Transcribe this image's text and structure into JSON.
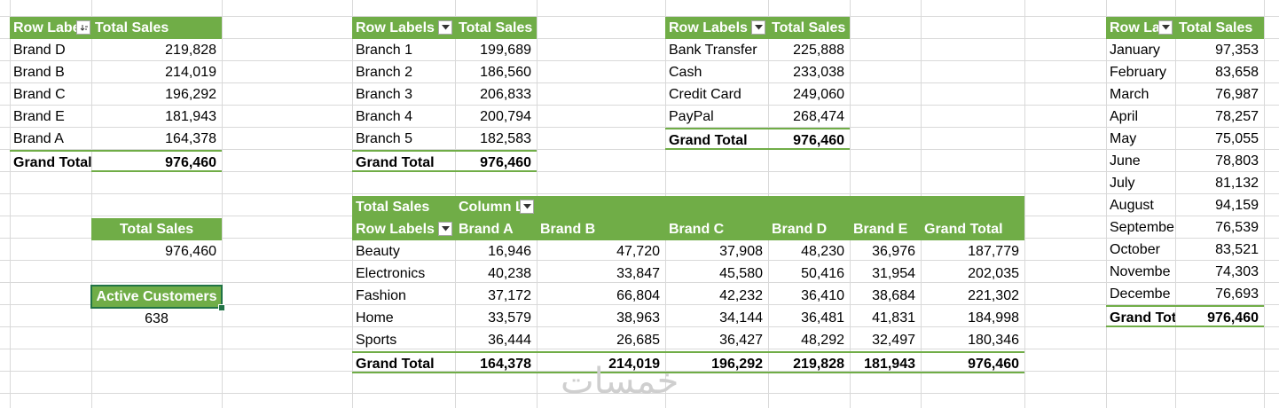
{
  "colors": {
    "accent": "#70ad47",
    "gridline": "#d9d9d9",
    "selection": "#217346"
  },
  "brand_pivot": {
    "header_row_label": "Row Labe",
    "header_value": "Total Sales",
    "rows": [
      {
        "label": "Brand D",
        "value": "219,828"
      },
      {
        "label": "Brand B",
        "value": "214,019"
      },
      {
        "label": "Brand C",
        "value": "196,292"
      },
      {
        "label": "Brand E",
        "value": "181,943"
      },
      {
        "label": "Brand A",
        "value": "164,378"
      }
    ],
    "total_label": "Grand Total",
    "total_value": "976,460"
  },
  "branch_pivot": {
    "header_row_label": "Row Labels",
    "header_value": "Total Sales",
    "rows": [
      {
        "label": "Branch 1",
        "value": "199,689"
      },
      {
        "label": "Branch 2",
        "value": "186,560"
      },
      {
        "label": "Branch 3",
        "value": "206,833"
      },
      {
        "label": "Branch 4",
        "value": "200,794"
      },
      {
        "label": "Branch 5",
        "value": "182,583"
      }
    ],
    "total_label": "Grand Total",
    "total_value": "976,460"
  },
  "payment_pivot": {
    "header_row_label": "Row Labels",
    "header_value": "Total Sales",
    "rows": [
      {
        "label": "Bank Transfer",
        "value": "225,888"
      },
      {
        "label": "Cash",
        "value": "233,038"
      },
      {
        "label": "Credit Card",
        "value": "249,060"
      },
      {
        "label": "PayPal",
        "value": "268,474"
      }
    ],
    "total_label": "Grand Total",
    "total_value": "976,460"
  },
  "month_pivot": {
    "header_row_label": "Row La",
    "header_value": "Total Sales",
    "rows": [
      {
        "label": "January",
        "value": "97,353"
      },
      {
        "label": "February",
        "value": "83,658"
      },
      {
        "label": "March",
        "value": "76,987"
      },
      {
        "label": "April",
        "value": "78,257"
      },
      {
        "label": "May",
        "value": "75,055"
      },
      {
        "label": "June",
        "value": "78,803"
      },
      {
        "label": "July",
        "value": "81,132"
      },
      {
        "label": "August",
        "value": "94,159"
      },
      {
        "label": "Septembe",
        "value": "76,539"
      },
      {
        "label": "October",
        "value": "83,521"
      },
      {
        "label": "Novembe",
        "value": "74,303"
      },
      {
        "label": "Decembe",
        "value": "76,693"
      }
    ],
    "total_label": "Grand Tot",
    "total_value": "976,460"
  },
  "total_sales_card": {
    "label": "Total Sales",
    "value": "976,460"
  },
  "active_customers_card": {
    "label": "Active Customers",
    "value": "638"
  },
  "category_pivot": {
    "corner_label": "Total Sales",
    "column_label": "Column L",
    "row_labels": "Row Labels",
    "columns": [
      "Brand A",
      "Brand B",
      "Brand C",
      "Brand D",
      "Brand E",
      "Grand Total"
    ],
    "rows": [
      {
        "label": "Beauty",
        "values": [
          "16,946",
          "47,720",
          "37,908",
          "48,230",
          "36,976",
          "187,779"
        ]
      },
      {
        "label": "Electronics",
        "values": [
          "40,238",
          "33,847",
          "45,580",
          "50,416",
          "31,954",
          "202,035"
        ]
      },
      {
        "label": "Fashion",
        "values": [
          "37,172",
          "66,804",
          "42,232",
          "36,410",
          "38,684",
          "221,302"
        ]
      },
      {
        "label": "Home",
        "values": [
          "33,579",
          "38,963",
          "34,144",
          "36,481",
          "41,831",
          "184,998"
        ]
      },
      {
        "label": "Sports",
        "values": [
          "36,444",
          "26,685",
          "36,427",
          "48,292",
          "32,497",
          "180,346"
        ]
      }
    ],
    "total_label": "Grand Total",
    "total_values": [
      "164,378",
      "214,019",
      "196,292",
      "219,828",
      "181,943",
      "976,460"
    ]
  },
  "watermark": "خمسات"
}
